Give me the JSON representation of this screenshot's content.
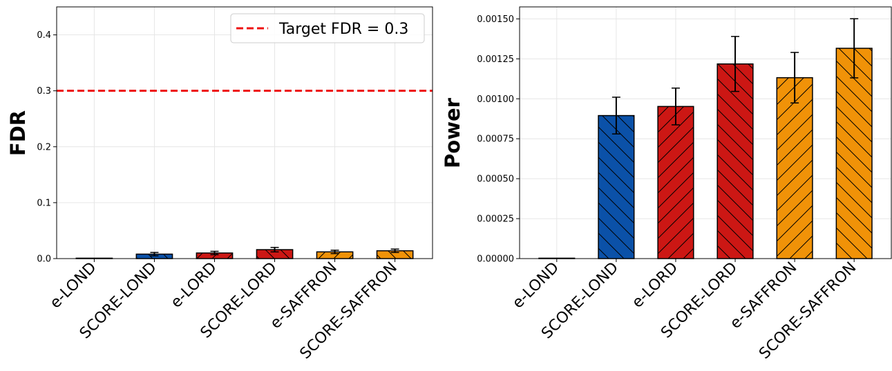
{
  "chart_data": [
    {
      "type": "bar",
      "title": "",
      "xlabel": "",
      "ylabel": "FDR",
      "categories": [
        "e-LOND",
        "SCORE-LOND",
        "e-LORD",
        "SCORE-LORD",
        "e-SAFFRON",
        "SCORE-SAFFRON"
      ],
      "values": [
        0.0,
        0.008,
        0.01,
        0.016,
        0.012,
        0.014
      ],
      "errors": [
        0.0,
        0.003,
        0.003,
        0.004,
        0.003,
        0.003
      ],
      "bar_colors": [
        "#0b51a8",
        "#0b51a8",
        "#cc1714",
        "#cc1714",
        "#f09208",
        "#f09208"
      ],
      "hatches": [
        "\\",
        "\\",
        "/",
        "\\",
        "/",
        "\\"
      ],
      "ylim": [
        0,
        0.45
      ],
      "yticks": [
        0.0,
        0.1,
        0.2,
        0.3,
        0.4
      ],
      "ytick_labels": [
        "0.0",
        "0.1",
        "0.2",
        "0.3",
        "0.4"
      ],
      "reference_line": {
        "value": 0.3,
        "label": "Target FDR = 0.3",
        "color": "#ee1111",
        "style": "dashed"
      },
      "legend": {
        "position": "top-right",
        "entries": [
          "Target FDR = 0.3"
        ]
      },
      "grid": true
    },
    {
      "type": "bar",
      "title": "",
      "xlabel": "",
      "ylabel": "Power",
      "categories": [
        "e-LOND",
        "SCORE-LOND",
        "e-LORD",
        "SCORE-LORD",
        "e-SAFFRON",
        "SCORE-SAFFRON"
      ],
      "values": [
        0.0,
        0.000895,
        0.000952,
        0.001218,
        0.001132,
        0.001316
      ],
      "errors": [
        0.0,
        0.000115,
        0.000115,
        0.000172,
        0.000158,
        0.000185
      ],
      "bar_colors": [
        "#0b51a8",
        "#0b51a8",
        "#cc1714",
        "#cc1714",
        "#f09208",
        "#f09208"
      ],
      "hatches": [
        "\\",
        "\\",
        "/",
        "\\",
        "/",
        "\\"
      ],
      "ylim": [
        0,
        0.001575
      ],
      "yticks": [
        0.0,
        0.00025,
        0.0005,
        0.00075,
        0.001,
        0.00125,
        0.0015
      ],
      "ytick_labels": [
        "0.00000",
        "0.00025",
        "0.00050",
        "0.00075",
        "0.00100",
        "0.00125",
        "0.00150"
      ],
      "grid": true
    }
  ]
}
